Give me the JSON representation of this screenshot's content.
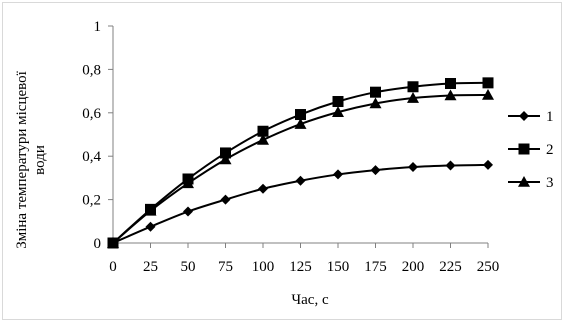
{
  "chart_data": {
    "type": "line",
    "x": [
      0,
      25,
      50,
      75,
      100,
      125,
      150,
      175,
      200,
      225,
      250
    ],
    "xticks": [
      "0",
      "25",
      "50",
      "75",
      "100",
      "125",
      "150",
      "175",
      "200",
      "225",
      "250"
    ],
    "yticks": [
      "0",
      "0,2",
      "0,4",
      "0,6",
      "0,8",
      "1"
    ],
    "ylim": [
      0,
      1
    ],
    "xlim": [
      0,
      250
    ],
    "xlabel": "Час, с",
    "ylabel_line1": "Зміна температури  місцевої",
    "ylabel_line2": "води",
    "grid": false,
    "legend_position": "right",
    "series": [
      {
        "name": "1",
        "marker": "diamond",
        "values": [
          0,
          0.075,
          0.145,
          0.2,
          0.25,
          0.287,
          0.316,
          0.336,
          0.35,
          0.357,
          0.36
        ]
      },
      {
        "name": "2",
        "marker": "square",
        "values": [
          0,
          0.155,
          0.295,
          0.415,
          0.515,
          0.592,
          0.652,
          0.695,
          0.72,
          0.735,
          0.738
        ]
      },
      {
        "name": "3",
        "marker": "triangle",
        "values": [
          0,
          0.148,
          0.275,
          0.385,
          0.475,
          0.548,
          0.603,
          0.643,
          0.668,
          0.68,
          0.682
        ]
      }
    ],
    "colors": {
      "line": "#000000"
    }
  }
}
